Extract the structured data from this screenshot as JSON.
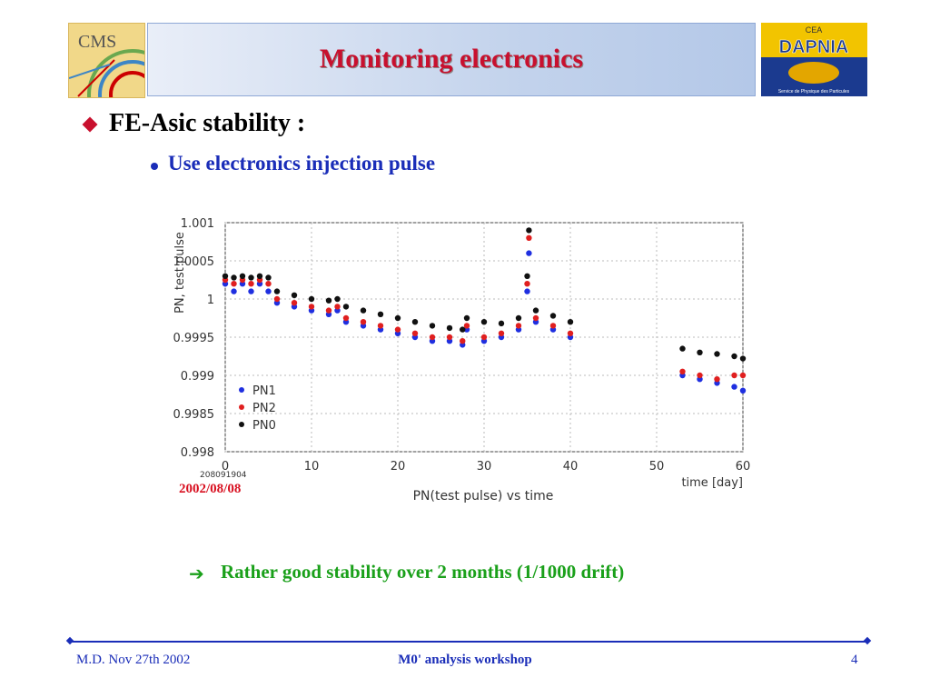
{
  "header": {
    "title": "Monitoring electronics",
    "logo_left_text": "CMS",
    "logo_right_text": "DAPNIA",
    "logo_right_subtext": "Service de Physique des Particules",
    "logo_right_badge": "CEA"
  },
  "bullets": {
    "level1": "FE-Asic stability :",
    "level2": "Use electronics injection pulse"
  },
  "chart_data": {
    "type": "scatter",
    "title": "PN(test pulse) vs time",
    "xlabel": "time [day]",
    "ylabel": "PN, test pulse",
    "xlim": [
      0,
      60
    ],
    "ylim": [
      0.998,
      1.001
    ],
    "x_ticks": [
      0,
      10,
      20,
      30,
      40,
      50,
      60
    ],
    "y_ticks": [
      0.998,
      0.9985,
      0.999,
      0.9995,
      1,
      1.0005,
      1.001
    ],
    "y_tick_labels": [
      "0.998",
      "0.9985",
      "0.999",
      "0.9995",
      "1",
      "1.0005",
      "1.001"
    ],
    "x_tick_labels": [
      "0",
      "10",
      "20",
      "30",
      "40",
      "50",
      "60"
    ],
    "x_origin_note": "208091904",
    "grid": true,
    "legend_position": "bottom-left",
    "series": [
      {
        "name": "PN1",
        "color": "#1f2fe0",
        "points": [
          [
            0,
            1.0002
          ],
          [
            1,
            1.0001
          ],
          [
            2,
            1.0002
          ],
          [
            3,
            1.0001
          ],
          [
            4,
            1.0002
          ],
          [
            5,
            1.0001
          ],
          [
            6,
            0.99995
          ],
          [
            8,
            0.9999
          ],
          [
            10,
            0.99985
          ],
          [
            12,
            0.9998
          ],
          [
            13,
            0.99985
          ],
          [
            14,
            0.9997
          ],
          [
            16,
            0.99965
          ],
          [
            18,
            0.9996
          ],
          [
            20,
            0.99955
          ],
          [
            22,
            0.9995
          ],
          [
            24,
            0.99945
          ],
          [
            26,
            0.99945
          ],
          [
            27.5,
            0.9994
          ],
          [
            28,
            0.9996
          ],
          [
            30,
            0.99945
          ],
          [
            32,
            0.9995
          ],
          [
            34,
            0.9996
          ],
          [
            35,
            1.0001
          ],
          [
            35.2,
            1.0006
          ],
          [
            36,
            0.9997
          ],
          [
            38,
            0.9996
          ],
          [
            40,
            0.9995
          ],
          [
            53,
            0.999
          ],
          [
            55,
            0.99895
          ],
          [
            57,
            0.9989
          ],
          [
            59,
            0.99885
          ],
          [
            60,
            0.9988
          ]
        ]
      },
      {
        "name": "PN2",
        "color": "#e01f1f",
        "points": [
          [
            0,
            1.00025
          ],
          [
            1,
            1.0002
          ],
          [
            2,
            1.00025
          ],
          [
            3,
            1.0002
          ],
          [
            4,
            1.00025
          ],
          [
            5,
            1.0002
          ],
          [
            6,
            1.0
          ],
          [
            8,
            0.99995
          ],
          [
            10,
            0.9999
          ],
          [
            12,
            0.99985
          ],
          [
            13,
            0.9999
          ],
          [
            14,
            0.99975
          ],
          [
            16,
            0.9997
          ],
          [
            18,
            0.99965
          ],
          [
            20,
            0.9996
          ],
          [
            22,
            0.99955
          ],
          [
            24,
            0.9995
          ],
          [
            26,
            0.9995
          ],
          [
            27.5,
            0.99945
          ],
          [
            28,
            0.99965
          ],
          [
            30,
            0.9995
          ],
          [
            32,
            0.99955
          ],
          [
            34,
            0.99965
          ],
          [
            35,
            1.0002
          ],
          [
            35.2,
            1.0008
          ],
          [
            36,
            0.99975
          ],
          [
            38,
            0.99965
          ],
          [
            40,
            0.99955
          ],
          [
            53,
            0.99905
          ],
          [
            55,
            0.999
          ],
          [
            57,
            0.99895
          ],
          [
            59,
            0.999
          ],
          [
            60,
            0.999
          ]
        ]
      },
      {
        "name": "PN0",
        "color": "#111111",
        "points": [
          [
            0,
            1.0003
          ],
          [
            1,
            1.00028
          ],
          [
            2,
            1.0003
          ],
          [
            3,
            1.00028
          ],
          [
            4,
            1.0003
          ],
          [
            5,
            1.00028
          ],
          [
            6,
            1.0001
          ],
          [
            8,
            1.00005
          ],
          [
            10,
            1.0
          ],
          [
            12,
            0.99998
          ],
          [
            13,
            1.0
          ],
          [
            14,
            0.9999
          ],
          [
            16,
            0.99985
          ],
          [
            18,
            0.9998
          ],
          [
            20,
            0.99975
          ],
          [
            22,
            0.9997
          ],
          [
            24,
            0.99965
          ],
          [
            26,
            0.99962
          ],
          [
            27.5,
            0.9996
          ],
          [
            28,
            0.99975
          ],
          [
            30,
            0.9997
          ],
          [
            32,
            0.99968
          ],
          [
            34,
            0.99975
          ],
          [
            35,
            1.0003
          ],
          [
            35.2,
            1.0009
          ],
          [
            36,
            0.99985
          ],
          [
            38,
            0.99978
          ],
          [
            40,
            0.9997
          ],
          [
            53,
            0.99935
          ],
          [
            55,
            0.9993
          ],
          [
            57,
            0.99928
          ],
          [
            59,
            0.99925
          ],
          [
            60,
            0.99922
          ]
        ]
      }
    ]
  },
  "annotations": {
    "date": "2002/08/08",
    "conclusion": "Rather good stability over 2 months (1/1000 drift)"
  },
  "footer": {
    "left": "M.D. Nov 27th 2002",
    "center": "M0' analysis workshop",
    "right": "4"
  }
}
